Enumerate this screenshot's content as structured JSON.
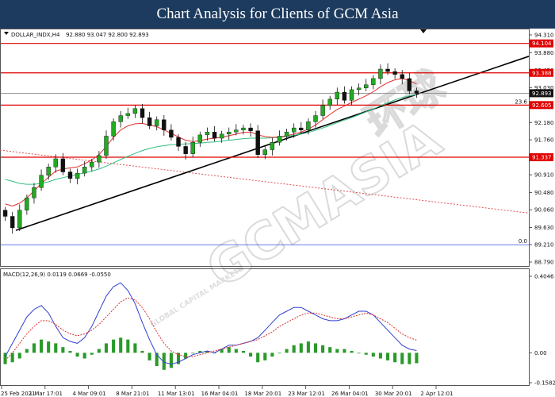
{
  "header": {
    "title": "Chart Analysis for Clients of GCM Asia"
  },
  "watermark": {
    "brand": "GCMASIA",
    "sub": "GLOBAL CAPITAL MARKETS",
    "cn": "环球"
  },
  "colors": {
    "level_line": "#e00000",
    "ma_fast": "#e03030",
    "ma_slow": "#30c080",
    "trend_line": "#000000",
    "dotted_trend": "#e05050",
    "fib_line": "#3050e0",
    "macd_signal": "#3040d0",
    "macd_line": "#e03030",
    "macd_hist": "#2a9a2a",
    "candle_up": "#22aa22",
    "candle_down": "#111111"
  },
  "chart_data": [
    {
      "type": "candlestick",
      "symbol": "DOLLAR_INDX,H4",
      "ohlc_readout": "92.880 93.047 92.800 92.893",
      "ylim": [
        88.79,
        94.31
      ],
      "y_ticks": [
        94.31,
        93.88,
        93.45,
        93.03,
        92.6,
        92.18,
        91.76,
        91.33,
        90.91,
        90.48,
        90.06,
        89.63,
        89.21,
        88.79
      ],
      "x_ticks": [
        "25 Feb 2021",
        "1 Mar 17:01",
        "4 Mar 09:01",
        "8 Mar 21:01",
        "11 Mar 13:01",
        "16 Mar 04:01",
        "18 Mar 20:01",
        "23 Mar 12:01",
        "26 Mar 04:01",
        "30 Mar 20:01",
        "2 Apr 12:01"
      ],
      "levels": [
        94.104,
        93.388,
        92.605,
        91.337
      ],
      "level_labels": [
        "94.104",
        "93.388",
        "92.605",
        "91.337"
      ],
      "current_price": 92.893,
      "current_price_label": "92.893",
      "fib_levels": [
        {
          "label": "23.6",
          "value": 92.605
        },
        {
          "label": "0.0",
          "value": 89.21
        }
      ],
      "trend_line": {
        "from": [
          0.03,
          89.56
        ],
        "to": [
          1.0,
          93.79
        ]
      },
      "dotted_trend": {
        "from": [
          0.0,
          91.51
        ],
        "to": [
          1.0,
          89.98
        ]
      },
      "closes": [
        89.9,
        89.62,
        90.05,
        90.35,
        90.6,
        90.9,
        91.1,
        91.3,
        90.98,
        90.82,
        90.95,
        91.1,
        91.22,
        91.38,
        91.85,
        92.2,
        92.35,
        92.4,
        92.52,
        92.3,
        92.1,
        92.25,
        92.0,
        91.82,
        91.6,
        91.42,
        91.7,
        91.88,
        91.95,
        91.8,
        91.9,
        91.95,
        92.0,
        92.05,
        91.98,
        91.4,
        91.52,
        91.7,
        91.85,
        91.95,
        92.05,
        92.0,
        92.2,
        92.35,
        92.6,
        92.75,
        92.92,
        92.72,
        92.98,
        93.02,
        93.1,
        93.25,
        93.48,
        93.42,
        93.35,
        93.25,
        92.95,
        92.89
      ],
      "ma_fast": [
        90.2,
        90.15,
        90.22,
        90.35,
        90.52,
        90.7,
        90.85,
        91.0,
        91.05,
        91.08,
        91.1,
        91.18,
        91.27,
        91.4,
        91.6,
        91.82,
        92.0,
        92.1,
        92.15,
        92.16,
        92.12,
        92.08,
        92.0,
        91.92,
        91.83,
        91.75,
        91.72,
        91.74,
        91.78,
        91.8,
        91.82,
        91.86,
        91.9,
        91.94,
        91.95,
        91.88,
        91.84,
        91.82,
        91.83,
        91.86,
        91.9,
        91.95,
        92.02,
        92.12,
        92.25,
        92.38,
        92.5,
        92.58,
        92.67,
        92.75,
        92.83,
        92.93,
        93.05,
        93.15,
        93.22,
        93.25,
        93.2,
        93.12
      ],
      "ma_slow": [
        90.8,
        90.75,
        90.7,
        90.68,
        90.68,
        90.7,
        90.74,
        90.8,
        90.84,
        90.88,
        90.92,
        90.96,
        91.0,
        91.05,
        91.12,
        91.2,
        91.28,
        91.36,
        91.43,
        91.5,
        91.55,
        91.59,
        91.62,
        91.64,
        91.65,
        91.66,
        91.67,
        91.68,
        91.7,
        91.71,
        91.73,
        91.75,
        91.77,
        91.79,
        91.8,
        91.8,
        91.8,
        91.81,
        91.82,
        91.84,
        91.87,
        91.9,
        91.94,
        91.99,
        92.05,
        92.11,
        92.18,
        92.24,
        92.3,
        92.37,
        92.44,
        92.51,
        92.59,
        92.66,
        92.73,
        92.79,
        92.83,
        92.86
      ]
    },
    {
      "type": "macd",
      "title": "MACD(12,26,9) 0.0119 0.0669 -0.0550",
      "ylim": [
        -0.1582,
        0.4046
      ],
      "y_ticks": [
        0.4046,
        0.0,
        -0.1582
      ],
      "y_tick_labels": [
        "0.4046",
        "0.00",
        "-0.1582"
      ],
      "histogram": [
        -0.06,
        -0.05,
        -0.03,
        0.02,
        0.05,
        0.07,
        0.06,
        0.05,
        0.03,
        0.01,
        -0.02,
        -0.03,
        -0.01,
        0.02,
        0.05,
        0.07,
        0.08,
        0.07,
        0.05,
        0.01,
        -0.04,
        -0.07,
        -0.09,
        -0.08,
        -0.06,
        -0.03,
        0.0,
        0.01,
        0.01,
        0.0,
        0.02,
        0.03,
        0.02,
        0.01,
        -0.02,
        -0.05,
        -0.04,
        -0.02,
        0.0,
        0.02,
        0.04,
        0.05,
        0.06,
        0.05,
        0.04,
        0.03,
        0.02,
        0.02,
        0.01,
        0.0,
        -0.01,
        -0.02,
        -0.03,
        -0.04,
        -0.05,
        -0.06,
        -0.06,
        -0.055
      ],
      "signal": [
        -0.02,
        0.05,
        0.12,
        0.19,
        0.23,
        0.25,
        0.21,
        0.14,
        0.08,
        0.06,
        0.05,
        0.08,
        0.14,
        0.22,
        0.3,
        0.35,
        0.37,
        0.33,
        0.26,
        0.16,
        0.07,
        -0.01,
        -0.05,
        -0.06,
        -0.05,
        -0.03,
        -0.01,
        0.0,
        0.01,
        0.0,
        0.02,
        0.04,
        0.04,
        0.05,
        0.06,
        0.08,
        0.12,
        0.16,
        0.2,
        0.22,
        0.24,
        0.24,
        0.22,
        0.2,
        0.18,
        0.17,
        0.17,
        0.18,
        0.2,
        0.22,
        0.22,
        0.2,
        0.16,
        0.12,
        0.08,
        0.04,
        0.02,
        0.012
      ],
      "macd_line": [
        -0.04,
        0.0,
        0.05,
        0.1,
        0.14,
        0.17,
        0.17,
        0.15,
        0.12,
        0.1,
        0.09,
        0.1,
        0.12,
        0.15,
        0.19,
        0.23,
        0.27,
        0.29,
        0.28,
        0.24,
        0.18,
        0.11,
        0.05,
        0.01,
        -0.01,
        -0.02,
        -0.02,
        -0.01,
        0.0,
        0.01,
        0.02,
        0.03,
        0.04,
        0.05,
        0.06,
        0.07,
        0.09,
        0.11,
        0.14,
        0.16,
        0.18,
        0.2,
        0.21,
        0.21,
        0.2,
        0.19,
        0.18,
        0.18,
        0.19,
        0.2,
        0.21,
        0.2,
        0.18,
        0.16,
        0.13,
        0.1,
        0.08,
        0.067
      ]
    }
  ]
}
